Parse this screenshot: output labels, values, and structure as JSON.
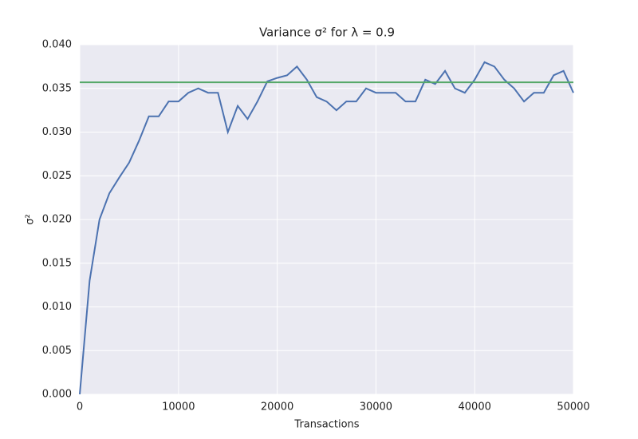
{
  "chart_data": {
    "type": "line",
    "title": "Variance σ² for λ = 0.9",
    "xlabel": "Transactions",
    "ylabel": "σ²",
    "x": [
      0,
      1000,
      2000,
      3000,
      4000,
      5000,
      6000,
      7000,
      8000,
      9000,
      10000,
      11000,
      12000,
      13000,
      14000,
      15000,
      16000,
      17000,
      18000,
      19000,
      20000,
      21000,
      22000,
      23000,
      24000,
      25000,
      26000,
      27000,
      28000,
      29000,
      30000,
      31000,
      32000,
      33000,
      34000,
      35000,
      36000,
      37000,
      38000,
      39000,
      40000,
      41000,
      42000,
      43000,
      44000,
      45000,
      46000,
      47000,
      48000,
      49000,
      50000
    ],
    "series": [
      {
        "color": "#4c72b0",
        "values": [
          0.0,
          0.013,
          0.02,
          0.023,
          0.0248,
          0.0265,
          0.029,
          0.0318,
          0.0318,
          0.0335,
          0.0335,
          0.0345,
          0.035,
          0.0345,
          0.0345,
          0.03,
          0.033,
          0.0315,
          0.0335,
          0.0358,
          0.0362,
          0.0365,
          0.0375,
          0.036,
          0.034,
          0.0335,
          0.0325,
          0.0335,
          0.0335,
          0.035,
          0.0345,
          0.0345,
          0.0345,
          0.0335,
          0.0335,
          0.036,
          0.0355,
          0.037,
          0.035,
          0.0345,
          0.036,
          0.038,
          0.0375,
          0.036,
          0.035,
          0.0335,
          0.0345,
          0.0345,
          0.0365,
          0.037,
          0.0345
        ]
      },
      {
        "color": "#55a868",
        "x": [
          0,
          50000
        ],
        "values": [
          0.0357,
          0.0357
        ]
      }
    ],
    "xlim": [
      0,
      50000
    ],
    "xticks": [
      0,
      10000,
      20000,
      30000,
      40000,
      50000
    ],
    "ylim": [
      0,
      0.04
    ],
    "yticks": [
      {
        "value": 0,
        "label": "0.000"
      },
      0.005,
      {
        "value": 0.01,
        "label": "0.010"
      },
      0.015,
      {
        "value": 0.02,
        "label": "0.020"
      },
      0.025,
      {
        "value": 0.03,
        "label": "0.030"
      },
      0.035,
      {
        "value": 0.04,
        "label": "0.040"
      }
    ],
    "grid": true,
    "background": "#eaeaf2"
  }
}
